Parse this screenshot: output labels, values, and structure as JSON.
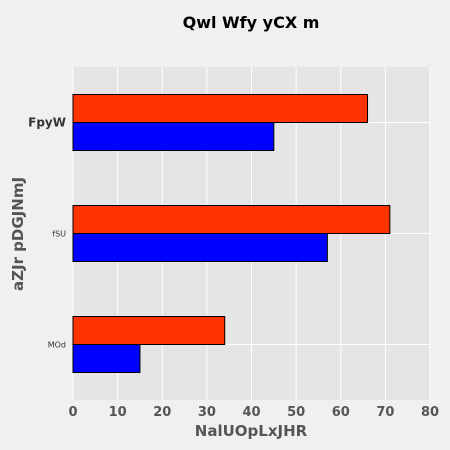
{
  "chart_data": {
    "type": "bar",
    "orientation": "horizontal",
    "title": "Qwl  Wfy yCX m",
    "xlabel": "NalUOpLxJHR",
    "ylabel": "aZJr pDGJNmJ",
    "categories": [
      "MOd",
      "fSU",
      "FpyW"
    ],
    "series": [
      {
        "color": "#0000ff",
        "values": [
          15,
          57,
          45
        ]
      },
      {
        "color": "#ff3300",
        "values": [
          34,
          71,
          66
        ]
      }
    ],
    "xlim": [
      0,
      80
    ],
    "xticks": [
      0,
      10,
      20,
      30,
      40,
      50,
      60,
      70,
      80
    ],
    "grid": true
  }
}
